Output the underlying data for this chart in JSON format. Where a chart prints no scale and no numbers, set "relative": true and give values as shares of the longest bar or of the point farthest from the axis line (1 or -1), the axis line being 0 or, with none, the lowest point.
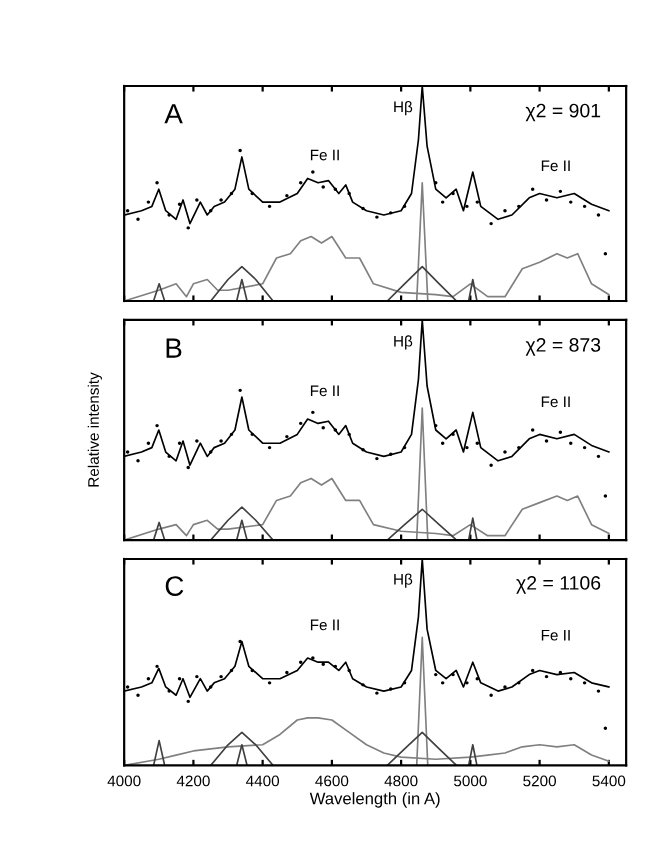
{
  "chart_data": [
    {
      "type": "line",
      "relative": true,
      "xlim": [
        4000,
        5450
      ],
      "xticks": [
        4000,
        4200,
        4400,
        4600,
        4800,
        5000,
        5200,
        5400
      ],
      "tick_labels": false,
      "legend": false,
      "grid": false,
      "annotations": [
        "A",
        "χ2 = 901",
        "Hβ",
        "Fe II",
        "Fe II"
      ],
      "series": [
        {
          "type": "scatter",
          "color": "#000000",
          "marker": "circle",
          "x": [
            4010,
            4040,
            4070,
            4095,
            4130,
            4160,
            4185,
            4210,
            4250,
            4280,
            4310,
            4335,
            4370,
            4420,
            4470,
            4510,
            4545,
            4575,
            4610,
            4650,
            4690,
            4730,
            4770,
            4810,
            4900,
            4920,
            4950,
            4990,
            5020,
            5060,
            5100,
            5140,
            5180,
            5220,
            5260,
            5290,
            5330,
            5370,
            5390
          ],
          "values": [
            0.42,
            0.38,
            0.46,
            0.55,
            0.4,
            0.45,
            0.34,
            0.47,
            0.42,
            0.47,
            0.5,
            0.7,
            0.5,
            0.44,
            0.49,
            0.55,
            0.6,
            0.53,
            0.52,
            0.5,
            0.43,
            0.39,
            0.41,
            0.44,
            0.55,
            0.46,
            0.5,
            0.44,
            0.46,
            0.36,
            0.42,
            0.44,
            0.52,
            0.47,
            0.51,
            0.46,
            0.44,
            0.4,
            0.22
          ]
        },
        {
          "type": "line",
          "color": "#000000",
          "line_style": "solid",
          "x": [
            4000,
            4050,
            4080,
            4100,
            4120,
            4150,
            4170,
            4190,
            4220,
            4240,
            4260,
            4290,
            4320,
            4340,
            4360,
            4400,
            4450,
            4500,
            4530,
            4560,
            4590,
            4620,
            4640,
            4660,
            4700,
            4750,
            4800,
            4830,
            4850,
            4861,
            4875,
            4900,
            4930,
            4959,
            4980,
            5007,
            5030,
            5080,
            5120,
            5170,
            5200,
            5250,
            5300,
            5350,
            5400
          ],
          "values": [
            0.4,
            0.42,
            0.44,
            0.52,
            0.42,
            0.38,
            0.47,
            0.36,
            0.46,
            0.4,
            0.44,
            0.46,
            0.52,
            0.67,
            0.52,
            0.46,
            0.46,
            0.5,
            0.57,
            0.55,
            0.56,
            0.5,
            0.54,
            0.46,
            0.42,
            0.4,
            0.42,
            0.5,
            0.75,
            1.0,
            0.72,
            0.52,
            0.48,
            0.52,
            0.42,
            0.6,
            0.44,
            0.38,
            0.4,
            0.48,
            0.5,
            0.48,
            0.5,
            0.45,
            0.42
          ]
        },
        {
          "type": "line",
          "color": "#808080",
          "line_style": "solid",
          "x": [
            4000,
            4100,
            4150,
            4180,
            4200,
            4240,
            4270,
            4300,
            4400,
            4440,
            4480,
            4510,
            4540,
            4570,
            4600,
            4640,
            4680,
            4720,
            4800,
            4900,
            4950,
            5000,
            5050,
            5100,
            5150,
            5200,
            5250,
            5280,
            5310,
            5350,
            5400
          ],
          "values": [
            0.0,
            0.05,
            0.08,
            0.02,
            0.08,
            0.1,
            0.05,
            0.05,
            0.08,
            0.2,
            0.22,
            0.28,
            0.3,
            0.27,
            0.3,
            0.2,
            0.2,
            0.08,
            0.04,
            0.03,
            0.02,
            0.08,
            0.02,
            0.02,
            0.15,
            0.18,
            0.22,
            0.2,
            0.22,
            0.08,
            0.03
          ]
        },
        {
          "type": "line",
          "color": "#808080",
          "line_style": "solid",
          "x": [
            4845,
            4861,
            4877
          ],
          "values": [
            0.0,
            0.55,
            0.0
          ]
        },
        {
          "type": "line",
          "color": "#404040",
          "line_style": "solid",
          "x": [
            4760,
            4810,
            4861,
            4910,
            4960
          ],
          "values": [
            0.0,
            0.08,
            0.16,
            0.08,
            0.0
          ]
        },
        {
          "type": "line",
          "color": "#404040",
          "line_style": "solid",
          "x": [
            4250,
            4300,
            4340,
            4380,
            4430
          ],
          "values": [
            0.0,
            0.1,
            0.16,
            0.1,
            0.0
          ]
        },
        {
          "type": "line",
          "color": "#404040",
          "line_style": "solid",
          "x": [
            4325,
            4340,
            4355
          ],
          "values": [
            0.0,
            0.1,
            0.0
          ]
        },
        {
          "type": "line",
          "color": "#404040",
          "line_style": "solid",
          "x": [
            4085,
            4101,
            4117
          ],
          "values": [
            0.0,
            0.08,
            0.0
          ]
        },
        {
          "type": "line",
          "color": "#404040",
          "line_style": "solid",
          "x": [
            4995,
            5007,
            5019
          ],
          "values": [
            0.0,
            0.1,
            0.0
          ]
        }
      ]
    },
    {
      "type": "line",
      "relative": true,
      "xlim": [
        4000,
        5450
      ],
      "xticks": [
        4000,
        4200,
        4400,
        4600,
        4800,
        5000,
        5200,
        5400
      ],
      "tick_labels": false,
      "legend": false,
      "grid": false,
      "ylabel": "Relative intensity",
      "annotations": [
        "B",
        "χ2 = 873",
        "Hβ",
        "Fe II",
        "Fe II"
      ],
      "series": [
        {
          "type": "scatter",
          "color": "#000000",
          "marker": "circle",
          "x": [
            4010,
            4040,
            4070,
            4095,
            4130,
            4160,
            4185,
            4210,
            4250,
            4280,
            4310,
            4335,
            4370,
            4420,
            4470,
            4510,
            4545,
            4575,
            4610,
            4650,
            4690,
            4730,
            4770,
            4810,
            4900,
            4920,
            4950,
            4990,
            5020,
            5060,
            5100,
            5140,
            5180,
            5220,
            5260,
            5290,
            5330,
            5370,
            5390
          ],
          "values": [
            0.4,
            0.36,
            0.44,
            0.52,
            0.38,
            0.44,
            0.33,
            0.45,
            0.4,
            0.45,
            0.48,
            0.68,
            0.48,
            0.42,
            0.47,
            0.53,
            0.58,
            0.51,
            0.5,
            0.48,
            0.41,
            0.37,
            0.39,
            0.42,
            0.52,
            0.44,
            0.48,
            0.42,
            0.44,
            0.34,
            0.4,
            0.42,
            0.5,
            0.45,
            0.49,
            0.44,
            0.42,
            0.38,
            0.2
          ]
        },
        {
          "type": "line",
          "color": "#000000",
          "line_style": "solid",
          "x": [
            4000,
            4050,
            4080,
            4100,
            4120,
            4150,
            4170,
            4190,
            4220,
            4240,
            4260,
            4290,
            4320,
            4340,
            4360,
            4400,
            4450,
            4500,
            4530,
            4560,
            4590,
            4620,
            4640,
            4660,
            4700,
            4750,
            4800,
            4830,
            4850,
            4861,
            4875,
            4900,
            4930,
            4959,
            4980,
            5007,
            5030,
            5080,
            5120,
            5170,
            5200,
            5250,
            5300,
            5350,
            5400
          ],
          "values": [
            0.38,
            0.4,
            0.42,
            0.5,
            0.4,
            0.36,
            0.45,
            0.34,
            0.44,
            0.38,
            0.42,
            0.44,
            0.5,
            0.65,
            0.5,
            0.44,
            0.44,
            0.48,
            0.55,
            0.53,
            0.54,
            0.48,
            0.52,
            0.44,
            0.4,
            0.38,
            0.4,
            0.48,
            0.73,
            1.0,
            0.7,
            0.5,
            0.46,
            0.5,
            0.4,
            0.58,
            0.42,
            0.36,
            0.38,
            0.46,
            0.48,
            0.46,
            0.48,
            0.43,
            0.4
          ]
        },
        {
          "type": "line",
          "color": "#808080",
          "line_style": "solid",
          "x": [
            4000,
            4100,
            4150,
            4180,
            4200,
            4240,
            4270,
            4300,
            4400,
            4440,
            4480,
            4510,
            4540,
            4570,
            4600,
            4640,
            4680,
            4720,
            4800,
            4900,
            4950,
            5000,
            5050,
            5100,
            5150,
            5200,
            5250,
            5280,
            5310,
            5350,
            5400
          ],
          "values": [
            0.0,
            0.05,
            0.07,
            0.02,
            0.07,
            0.09,
            0.05,
            0.05,
            0.07,
            0.18,
            0.2,
            0.26,
            0.28,
            0.25,
            0.28,
            0.18,
            0.18,
            0.07,
            0.04,
            0.03,
            0.02,
            0.07,
            0.02,
            0.02,
            0.14,
            0.17,
            0.2,
            0.18,
            0.2,
            0.07,
            0.03
          ]
        },
        {
          "type": "line",
          "color": "#808080",
          "line_style": "solid",
          "x": [
            4845,
            4861,
            4877
          ],
          "values": [
            0.0,
            0.6,
            0.0
          ]
        },
        {
          "type": "line",
          "color": "#404040",
          "line_style": "solid",
          "x": [
            4760,
            4810,
            4861,
            4910,
            4960
          ],
          "values": [
            0.0,
            0.07,
            0.14,
            0.07,
            0.0
          ]
        },
        {
          "type": "line",
          "color": "#404040",
          "line_style": "solid",
          "x": [
            4250,
            4300,
            4340,
            4380,
            4430
          ],
          "values": [
            0.0,
            0.09,
            0.15,
            0.09,
            0.0
          ]
        },
        {
          "type": "line",
          "color": "#404040",
          "line_style": "solid",
          "x": [
            4325,
            4340,
            4355
          ],
          "values": [
            0.0,
            0.09,
            0.0
          ]
        },
        {
          "type": "line",
          "color": "#404040",
          "line_style": "solid",
          "x": [
            4085,
            4101,
            4117
          ],
          "values": [
            0.0,
            0.08,
            0.0
          ]
        },
        {
          "type": "line",
          "color": "#404040",
          "line_style": "solid",
          "x": [
            4995,
            5007,
            5019
          ],
          "values": [
            0.0,
            0.1,
            0.0
          ]
        }
      ]
    },
    {
      "type": "line",
      "relative": true,
      "xlim": [
        4000,
        5450
      ],
      "xticks": [
        4000,
        4200,
        4400,
        4600,
        4800,
        5000,
        5200,
        5400
      ],
      "tick_labels": "x",
      "legend": false,
      "grid": false,
      "xlabel": "Wavelength (in A)",
      "annotations": [
        "C",
        "χ2 = 1106",
        "Hβ",
        "Fe II",
        "Fe II"
      ],
      "series": [
        {
          "type": "scatter",
          "color": "#000000",
          "marker": "circle",
          "x": [
            4010,
            4040,
            4070,
            4095,
            4130,
            4160,
            4185,
            4210,
            4250,
            4280,
            4310,
            4335,
            4370,
            4420,
            4470,
            4510,
            4545,
            4575,
            4610,
            4650,
            4690,
            4730,
            4770,
            4810,
            4900,
            4920,
            4950,
            4990,
            5020,
            5060,
            5100,
            5140,
            5180,
            5220,
            5260,
            5290,
            5330,
            5370,
            5390
          ],
          "values": [
            0.38,
            0.34,
            0.42,
            0.48,
            0.36,
            0.42,
            0.31,
            0.43,
            0.38,
            0.43,
            0.46,
            0.6,
            0.46,
            0.4,
            0.45,
            0.5,
            0.52,
            0.49,
            0.48,
            0.46,
            0.39,
            0.35,
            0.37,
            0.4,
            0.44,
            0.4,
            0.44,
            0.4,
            0.42,
            0.34,
            0.38,
            0.4,
            0.46,
            0.43,
            0.45,
            0.42,
            0.4,
            0.36,
            0.18
          ]
        },
        {
          "type": "line",
          "color": "#000000",
          "line_style": "solid",
          "x": [
            4000,
            4050,
            4080,
            4100,
            4120,
            4150,
            4170,
            4190,
            4220,
            4240,
            4260,
            4290,
            4320,
            4340,
            4360,
            4400,
            4450,
            4500,
            4530,
            4560,
            4590,
            4620,
            4640,
            4660,
            4700,
            4750,
            4800,
            4830,
            4850,
            4861,
            4875,
            4900,
            4930,
            4959,
            4980,
            5007,
            5030,
            5080,
            5120,
            5170,
            5200,
            5250,
            5300,
            5350,
            5400
          ],
          "values": [
            0.36,
            0.38,
            0.4,
            0.47,
            0.38,
            0.34,
            0.42,
            0.33,
            0.42,
            0.36,
            0.4,
            0.42,
            0.48,
            0.6,
            0.48,
            0.42,
            0.42,
            0.46,
            0.52,
            0.5,
            0.5,
            0.46,
            0.5,
            0.42,
            0.38,
            0.36,
            0.38,
            0.46,
            0.72,
            1.0,
            0.66,
            0.46,
            0.42,
            0.46,
            0.38,
            0.5,
            0.4,
            0.36,
            0.38,
            0.44,
            0.46,
            0.44,
            0.45,
            0.4,
            0.38
          ]
        },
        {
          "type": "line",
          "color": "#808080",
          "line_style": "solid",
          "x": [
            4000,
            4100,
            4150,
            4200,
            4250,
            4300,
            4400,
            4450,
            4500,
            4530,
            4560,
            4600,
            4650,
            4700,
            4750,
            4800,
            4900,
            5000,
            5050,
            5100,
            5150,
            5200,
            5250,
            5300,
            5350,
            5400
          ],
          "values": [
            0.0,
            0.03,
            0.05,
            0.07,
            0.08,
            0.09,
            0.1,
            0.15,
            0.22,
            0.23,
            0.23,
            0.22,
            0.16,
            0.1,
            0.06,
            0.04,
            0.03,
            0.04,
            0.05,
            0.06,
            0.09,
            0.1,
            0.09,
            0.1,
            0.05,
            0.02
          ]
        },
        {
          "type": "line",
          "color": "#808080",
          "line_style": "solid",
          "x": [
            4845,
            4861,
            4877
          ],
          "values": [
            0.0,
            0.62,
            0.0
          ]
        },
        {
          "type": "line",
          "color": "#404040",
          "line_style": "solid",
          "x": [
            4760,
            4810,
            4861,
            4910,
            4960
          ],
          "values": [
            0.0,
            0.08,
            0.16,
            0.08,
            0.0
          ]
        },
        {
          "type": "line",
          "color": "#404040",
          "line_style": "solid",
          "x": [
            4250,
            4300,
            4340,
            4380,
            4430
          ],
          "values": [
            0.0,
            0.1,
            0.16,
            0.1,
            0.0
          ]
        },
        {
          "type": "line",
          "color": "#404040",
          "line_style": "solid",
          "x": [
            4325,
            4340,
            4355
          ],
          "values": [
            0.0,
            0.1,
            0.0
          ]
        },
        {
          "type": "line",
          "color": "#404040",
          "line_style": "solid",
          "x": [
            4085,
            4101,
            4117
          ],
          "values": [
            0.0,
            0.12,
            0.0
          ]
        },
        {
          "type": "line",
          "color": "#404040",
          "line_style": "solid",
          "x": [
            4995,
            5007,
            5019
          ],
          "values": [
            0.0,
            0.1,
            0.0
          ]
        }
      ]
    }
  ]
}
